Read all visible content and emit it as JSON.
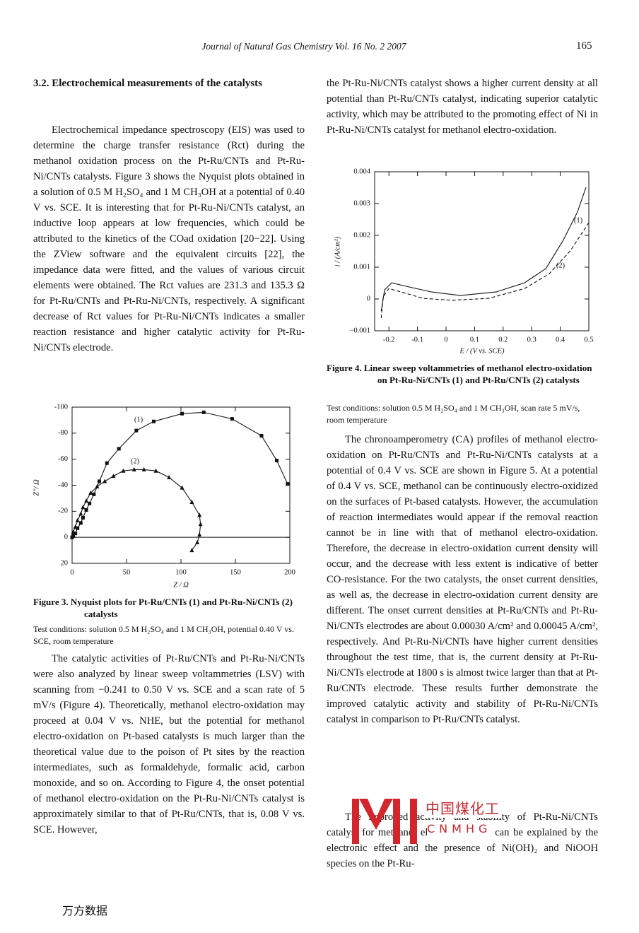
{
  "header": {
    "journal": "Journal of Natural Gas Chemistry Vol. 16 No. 2 2007",
    "page": "165"
  },
  "section": {
    "heading": "3.2. Electrochemical measurements of the catalysts"
  },
  "text": {
    "left_p1": "Electrochemical impedance spectroscopy (EIS) was used to determine the charge transfer resistance (Rct) during the methanol oxidation process on the Pt-Ru/CNTs and Pt-Ru-Ni/CNTs catalysts. Figure 3 shows the Nyquist plots obtained in a solution of 0.5 M H₂SO₄ and 1 M CH₃OH at a potential of 0.40 V vs. SCE. It is interesting that for Pt-Ru-Ni/CNTs catalyst, an inductive loop appears at low frequencies, which could be attributed to the kinetics of the COad oxidation [20−22]. Using the ZView software and the equivalent circuits [22], the impedance data were fitted, and the values of various circuit elements were obtained. The Rct values are 231.3 and 135.3 Ω for Pt-Ru/CNTs and Pt-Ru-Ni/CNTs, respectively. A significant decrease of Rct values for Pt-Ru-Ni/CNTs indicates a smaller reaction resistance and higher catalytic activity for Pt-Ru-Ni/CNTs electrode.",
    "left_p2": "The catalytic activities of Pt-Ru/CNTs and Pt-Ru-Ni/CNTs were also analyzed by linear sweep voltammetries (LSV) with scanning from −0.241 to 0.50 V vs. SCE and a scan rate of 5 mV/s (Figure 4). Theoretically, methanol electro-oxidation may proceed at 0.04 V vs. NHE, but the potential for methanol electro-oxidation on Pt-based catalysts is much larger than the theoretical value due to the poison of Pt sites by the reaction intermediates, such as formaldehyde, formalic acid, carbon monoxide, and so on. According to Figure 4, the onset potential of methanol electro-oxidation on the Pt-Ru-Ni/CNTs catalyst is approximately similar to that of Pt-Ru/CNTs, that is, 0.08 V vs. SCE. However,",
    "right_p1": "the Pt-Ru-Ni/CNTs catalyst shows a higher current density at all potential than Pt-Ru/CNTs catalyst, indicating superior catalytic activity, which may be attributed to the promoting effect of Ni in Pt-Ru-Ni/CNTs catalyst for methanol electro-oxidation.",
    "right_p2": "The chronoamperometry (CA) profiles of methanol electro-oxidation on Pt-Ru/CNTs and Pt-Ru-Ni/CNTs catalysts at a potential of 0.4 V vs. SCE are shown in Figure 5. At a potential of 0.4 V vs. SCE, methanol can be continuously electro-oxidized on the surfaces of Pt-based catalysts. However, the accumulation of reaction intermediates would appear if the removal reaction cannot be in line with that of methanol electro-oxidation. Therefore, the decrease in electro-oxidation current density will occur, and the decrease with less extent is indicative of better CO-resistance. For the two catalysts, the onset current densities, as well as, the decrease in electro-oxidation current density are different. The onset current densities at Pt-Ru/CNTs and Pt-Ru-Ni/CNTs electrodes are about 0.00030 A/cm² and 0.00045 A/cm², respectively. And Pt-Ru-Ni/CNTs have higher current densities throughout the test time, that is, the current density at Pt-Ru-Ni/CNTs electrode at 1800 s is almost twice larger than that at Pt-Ru/CNTs electrode. These results further demonstrate the improved catalytic activity and stability of Pt-Ru-Ni/CNTs catalyst in comparison to Pt-Ru/CNTs catalyst.",
    "right_p3": "The improved activity and stability of Pt-Ru-Ni/CNTs catalyst for methanol electro-oxidation can be explained by the electronic effect and the presence of Ni(OH)₂ and NiOOH species on the Pt-Ru-"
  },
  "figures": [
    {
      "caption": "Figure 3. Nyquist plots for Pt-Ru/CNTs (1) and Pt-Ru-Ni/CNTs (2) catalysts",
      "conditions": "Test conditions: solution 0.5 M H₂SO₄ and 1 M CH₃OH, potential 0.40 V vs. SCE, room temperature"
    },
    {
      "caption": "Figure 4. Linear sweep voltammetries of methanol electro-oxidation on Pt-Ru-Ni/CNTs (1) and Pt-Ru/CNTs (2) catalysts",
      "conditions": "Test conditions: solution 0.5 M H₂SO₄ and 1 M CH₃OH, scan rate 5 mV/s, room temperature"
    }
  ],
  "chart_data": [
    {
      "type": "line",
      "x_label": "Z / Ω",
      "y_label": "Z″/ Ω",
      "xlim": [
        0,
        200
      ],
      "xticks": [
        0,
        50,
        100,
        150,
        200
      ],
      "ylim": [
        20,
        -100
      ],
      "yticks": [
        -100,
        -80,
        -60,
        -40,
        -20,
        0,
        20
      ],
      "zero_line": true,
      "series": [
        {
          "name": "(1)",
          "color": "#111111",
          "marker": "square",
          "dash": false,
          "x": [
            0,
            1,
            3,
            5,
            8,
            10,
            13,
            16,
            20,
            25,
            32,
            43,
            59,
            75,
            101,
            121,
            147,
            174,
            188,
            198
          ],
          "values": [
            0,
            -1,
            -3,
            -7,
            -11,
            -15,
            -21,
            -26,
            -33,
            -43,
            -57,
            -68,
            -82,
            -89,
            -95,
            -96,
            -91,
            -78,
            -59,
            -41
          ]
        },
        {
          "name": "(2)",
          "color": "#111111",
          "marker": "triangle",
          "dash": false,
          "x": [
            0,
            1,
            3,
            5,
            8,
            10,
            13,
            17,
            23,
            30,
            38,
            47,
            57,
            66,
            77,
            89,
            101,
            110,
            117,
            118,
            117,
            115,
            110
          ],
          "values": [
            0,
            -4,
            -8,
            -13,
            -18,
            -23,
            -28,
            -34,
            -39,
            -43,
            -47,
            -51,
            -52,
            -52,
            -51,
            -46,
            -38,
            -27,
            -17,
            -10,
            -2,
            4,
            10
          ]
        }
      ]
    },
    {
      "type": "line",
      "x_label": "E / (V vs. SCE)",
      "y_label": "i / (A/cm²)",
      "xlim": [
        -0.25,
        0.5
      ],
      "xticks": [
        -0.2,
        -0.1,
        0,
        0.1,
        0.2,
        0.3,
        0.4,
        0.5
      ],
      "ylim": [
        -0.001,
        0.004
      ],
      "yticks": [
        {
          "value": -0.001,
          "label": "−0.001"
        },
        0,
        0.001,
        0.002,
        0.003,
        0.004
      ],
      "zero_line": false,
      "series": [
        {
          "name": "(1)",
          "color": "#111111",
          "marker": "none",
          "dash": false,
          "x": [
            -0.227,
            -0.215,
            -0.19,
            -0.14,
            -0.05,
            0.05,
            0.175,
            0.275,
            0.35,
            0.41,
            0.46,
            0.49
          ],
          "values": [
            -0.00038,
            0.00029,
            0.00051,
            0.0004,
            0.00022,
            0.00011,
            0.00022,
            0.00051,
            0.00096,
            0.00184,
            0.00273,
            0.00351
          ]
        },
        {
          "name": "(2)",
          "color": "#111111",
          "marker": "none",
          "dash": true,
          "x": [
            -0.227,
            -0.22,
            -0.2,
            -0.165,
            -0.08,
            0.02,
            0.15,
            0.275,
            0.36,
            0.435,
            0.5
          ],
          "values": [
            -0.0006,
            7e-05,
            0.00033,
            0.00024,
            2e-05,
            -4e-05,
            2e-05,
            0.00033,
            0.00078,
            0.00151,
            0.0024
          ]
        }
      ]
    }
  ],
  "watermark": {
    "chinese": "中国煤化工",
    "latin": "CNMHG"
  },
  "footer": {
    "source": "万方数据"
  }
}
